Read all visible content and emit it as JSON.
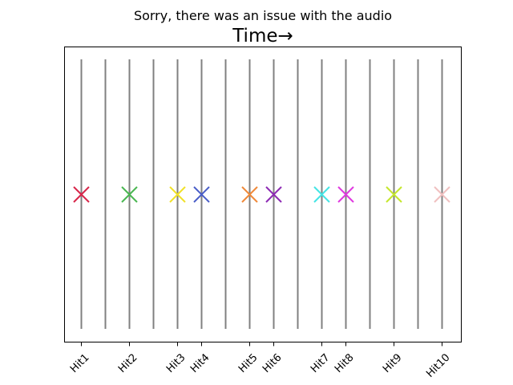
{
  "chart_data": {
    "type": "scatter",
    "subtitle": "Sorry, there was an issue with the audio",
    "title": "Time→",
    "xlabel": "",
    "ylabel": "",
    "grid": false,
    "legend": "none",
    "beat_lines": [
      1,
      2,
      3,
      4,
      5,
      6,
      7,
      8,
      9,
      10,
      11,
      12,
      13,
      14,
      15,
      16
    ],
    "line_color": "#808080",
    "marker": "x",
    "xlim": [
      0.3,
      16.8
    ],
    "ylim": [
      0,
      1
    ],
    "hits": [
      {
        "label": "Hit1",
        "x": 1,
        "y": 0.5,
        "color": "#d8274b"
      },
      {
        "label": "Hit2",
        "x": 3,
        "y": 0.5,
        "color": "#4bb752"
      },
      {
        "label": "Hit3",
        "x": 5,
        "y": 0.5,
        "color": "#f1e12a"
      },
      {
        "label": "Hit4",
        "x": 6,
        "y": 0.5,
        "color": "#4a5ec8"
      },
      {
        "label": "Hit5",
        "x": 8,
        "y": 0.5,
        "color": "#f08a3a"
      },
      {
        "label": "Hit6",
        "x": 9,
        "y": 0.5,
        "color": "#8e2bb4"
      },
      {
        "label": "Hit7",
        "x": 11,
        "y": 0.5,
        "color": "#45e4e4"
      },
      {
        "label": "Hit8",
        "x": 12,
        "y": 0.5,
        "color": "#e03ae0"
      },
      {
        "label": "Hit9",
        "x": 14,
        "y": 0.5,
        "color": "#c5e62d"
      },
      {
        "label": "Hit10",
        "x": 16,
        "y": 0.5,
        "color": "#f0c0c0"
      }
    ]
  }
}
